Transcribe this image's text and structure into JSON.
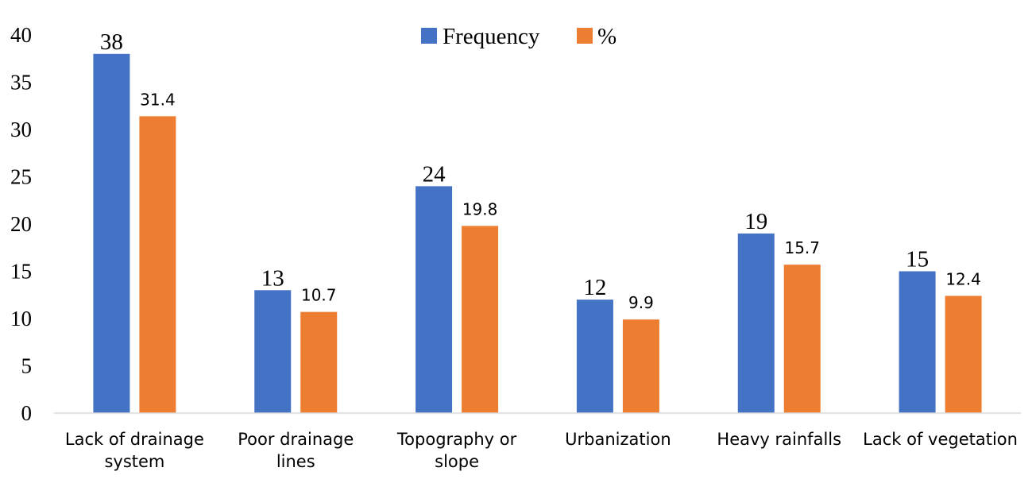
{
  "chart_data": {
    "type": "bar",
    "categories": [
      [
        "Lack of drainage",
        "system"
      ],
      [
        "Poor drainage",
        "lines"
      ],
      [
        "Topography or",
        "slope"
      ],
      [
        "Urbanization"
      ],
      [
        "Heavy rainfalls"
      ],
      [
        "Lack of vegetation"
      ]
    ],
    "series": [
      {
        "name": "Frequency",
        "values": [
          38,
          13,
          24,
          12,
          19,
          15
        ],
        "color": "#4472C4"
      },
      {
        "name": "%",
        "values": [
          31.4,
          10.7,
          19.8,
          9.9,
          15.7,
          12.4
        ],
        "color": "#ED7D31"
      }
    ],
    "ylim": [
      0,
      40
    ],
    "yticks": [
      0,
      5,
      10,
      15,
      20,
      25,
      30,
      35,
      40
    ],
    "grid": false,
    "legend_position": "top-center",
    "data_labels": true,
    "axis_color": "#D9D9D9"
  }
}
